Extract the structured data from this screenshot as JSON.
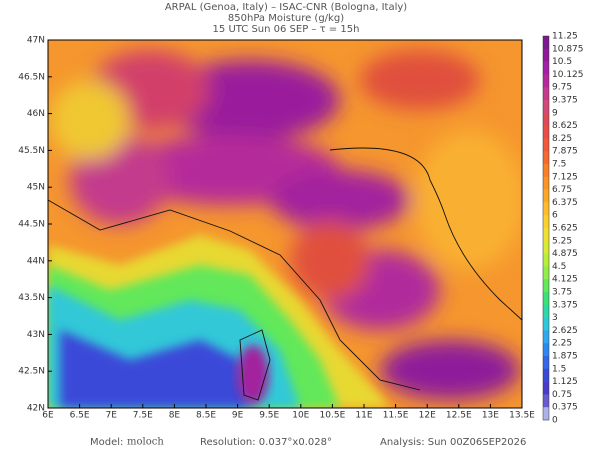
{
  "header": {
    "line1": "ARPAL (Genoa, Italy)  –  ISAC-CNR (Bologna, Italy)",
    "line2": "850hPa Moisture (g/kg)",
    "line3": "15 UTC Sun 06 SEP  –  τ = 15h"
  },
  "map": {
    "lat_labels": [
      "47N",
      "46.5N",
      "46N",
      "45.5N",
      "45N",
      "44.5N",
      "44N",
      "43.5N",
      "43N",
      "42.5N",
      "42N"
    ],
    "lon_labels": [
      "6E",
      "6.5E",
      "7E",
      "7.5E",
      "8E",
      "8.5E",
      "9E",
      "9.5E",
      "10E",
      "10.5E",
      "11E",
      "11.5E",
      "12E",
      "12.5E",
      "13E",
      "13.5E"
    ]
  },
  "colorbar": {
    "labels": [
      "11.25",
      "10.875",
      "10.5",
      "10.125",
      "9.75",
      "9.375",
      "9",
      "8.625",
      "8.25",
      "7.875",
      "7.5",
      "7.125",
      "6.75",
      "6.375",
      "6",
      "5.625",
      "5.25",
      "4.875",
      "4.5",
      "4.125",
      "3.75",
      "3.375",
      "3",
      "2.625",
      "2.25",
      "1.875",
      "1.5",
      "1.125",
      "0.75",
      "0.375",
      "0"
    ],
    "colors": [
      "#7a1a8c",
      "#8e1a9a",
      "#a31fa8",
      "#b42a9e",
      "#c43a8c",
      "#d24a78",
      "#dd4a5a",
      "#e84e45",
      "#f05a3a",
      "#f56a30",
      "#f8802a",
      "#fa9428",
      "#fba82a",
      "#fcbc2c",
      "#fad030",
      "#f0e032",
      "#d8ea34",
      "#b8ee3a",
      "#90ee48",
      "#62e85a",
      "#3ee07a",
      "#30d8a8",
      "#30c8d8",
      "#2ea8f0",
      "#2e88f0",
      "#3468e8",
      "#3a4ad8",
      "#4a3cc8",
      "#6a5ad0",
      "#b0b0e8"
    ]
  },
  "footer": {
    "model_label": "Model:",
    "model": "moloch",
    "resolution": "Resolution: 0.037°x0.028°",
    "analysis": "Analysis: Sun 00Z06SEP2026"
  }
}
